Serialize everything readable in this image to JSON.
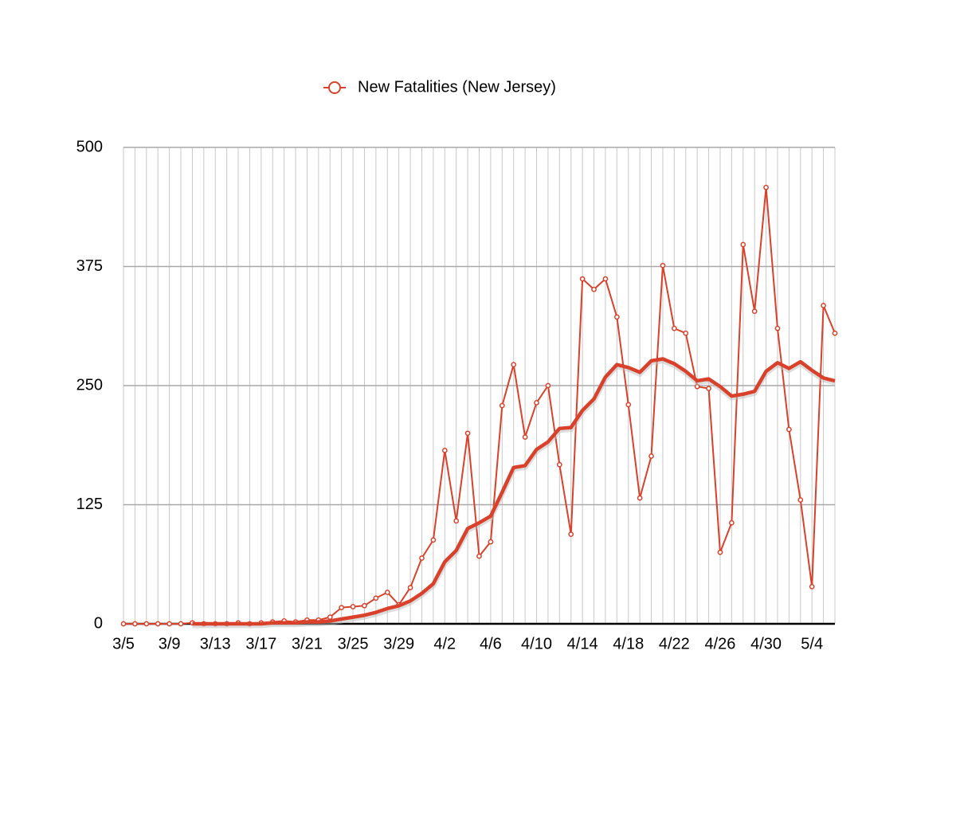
{
  "chart_data": {
    "type": "line",
    "categories": [
      "3/5",
      null,
      null,
      null,
      "3/9",
      null,
      null,
      null,
      "3/13",
      null,
      null,
      null,
      "3/17",
      null,
      null,
      null,
      "3/21",
      null,
      null,
      null,
      "3/25",
      null,
      null,
      null,
      "3/29",
      null,
      null,
      null,
      "4/2",
      null,
      null,
      null,
      "4/6",
      null,
      null,
      null,
      "4/10",
      null,
      null,
      null,
      "4/14",
      null,
      null,
      null,
      "4/18",
      null,
      null,
      null,
      "4/22",
      null,
      null,
      null,
      "4/26",
      null,
      null,
      null,
      "4/30",
      null,
      null,
      null,
      "5/4",
      null,
      null
    ],
    "series": [
      {
        "name": "New Fatalities (New Jersey)",
        "color": "#d9412b",
        "markers": true,
        "values": [
          0,
          0,
          0,
          0,
          0,
          0,
          1,
          0,
          0,
          0,
          1,
          0,
          1,
          2,
          3,
          2,
          4,
          4,
          7,
          17,
          18,
          19,
          27,
          33,
          20,
          38,
          69,
          88,
          182,
          108,
          200,
          71,
          86,
          229,
          272,
          196,
          232,
          250,
          167,
          94,
          362,
          351,
          362,
          322,
          230,
          132,
          176,
          376,
          310,
          305,
          249,
          247,
          75,
          106,
          398,
          328,
          458,
          310,
          204,
          130,
          39,
          334,
          305
        ]
      },
      {
        "color": "#d9412b",
        "markers": false,
        "values": [
          null,
          null,
          null,
          null,
          null,
          null,
          0,
          0,
          0,
          0,
          0,
          0,
          0,
          1,
          1,
          1,
          2,
          2,
          3,
          5,
          7,
          9,
          12,
          16,
          19,
          24,
          32,
          42,
          65,
          77,
          100,
          106,
          113,
          138,
          164,
          166,
          183,
          191,
          205,
          206,
          224,
          236,
          259,
          272,
          269,
          264,
          276,
          278,
          273,
          265,
          255,
          257,
          249,
          239,
          241,
          244,
          265,
          274,
          268,
          275,
          266,
          258,
          255
        ]
      }
    ],
    "ylim": [
      0,
      500
    ],
    "yticks": [
      0,
      125,
      250,
      375,
      500
    ],
    "grid": true,
    "legend": "top"
  }
}
